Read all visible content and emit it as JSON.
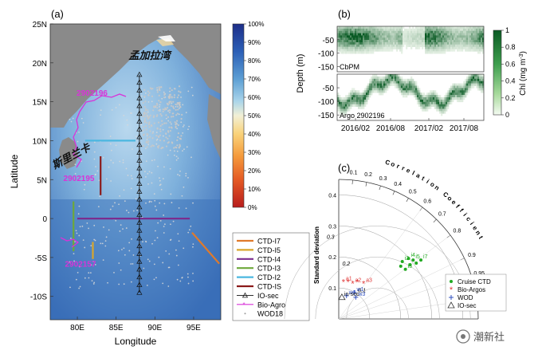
{
  "chart_data": [
    {
      "type": "heatmap",
      "panel_label": "(a)",
      "xlabel": "Longitude",
      "ylabel": "Latitude",
      "xlim": [
        76.5,
        98.5
      ],
      "ylim": [
        -13,
        25
      ],
      "xticks": [
        80,
        85,
        90,
        95
      ],
      "xtick_labels": [
        "80E",
        "85E",
        "90E",
        "95E"
      ],
      "yticks": [
        25,
        20,
        15,
        10,
        5,
        0,
        -5,
        -10
      ],
      "ytick_labels": [
        "25N",
        "20N",
        "15N",
        "10N",
        "5N",
        "0",
        "-5S",
        "-10S"
      ],
      "colorbar": {
        "ticks": [
          100,
          90,
          80,
          70,
          60,
          50,
          40,
          30,
          20,
          10,
          0
        ],
        "tick_labels": [
          "100%",
          "90%",
          "80%",
          "70%",
          "60%",
          "50%",
          "40%",
          "30%",
          "20%",
          "10%",
          "0%"
        ]
      },
      "map_labels": [
        {
          "text": "孟加拉湾",
          "lon": 89.3,
          "lat": 20.5
        },
        {
          "text": "斯里兰卡",
          "lon": 79.4,
          "lat": 7.6
        },
        {
          "text": "2902196",
          "lon": 81.9,
          "lat": 15.8
        },
        {
          "text": "2902195",
          "lon": 80.2,
          "lat": 4.8
        },
        {
          "text": "2902157",
          "lon": 80.4,
          "lat": -6.2
        }
      ],
      "sections": [
        {
          "name": "CTD-I7",
          "color": "#e07a2b",
          "path": [
            [
              94.8,
              -1.8
            ],
            [
              98.3,
              -5.8
            ]
          ]
        },
        {
          "name": "CTD-I5",
          "color": "#d9a62b",
          "path": [
            [
              82.0,
              -3.0
            ],
            [
              82.0,
              -5.2
            ]
          ]
        },
        {
          "name": "CTD-I4",
          "color": "#7b2d8e",
          "path": [
            [
              80.0,
              0
            ],
            [
              94.5,
              0
            ]
          ]
        },
        {
          "name": "CTD-I3",
          "color": "#6da83a",
          "path": [
            [
              79.5,
              2.2
            ],
            [
              79.5,
              -4.2
            ]
          ]
        },
        {
          "name": "CTD-I2",
          "color": "#4bb7e0",
          "path": [
            [
              81.0,
              10
            ],
            [
              87.5,
              10
            ]
          ]
        },
        {
          "name": "CTD-IS",
          "color": "#8b1a1a",
          "path": [
            [
              83.0,
              8.0
            ],
            [
              83.0,
              3.0
            ]
          ]
        }
      ],
      "io_sec": {
        "lon": 88.0,
        "lat_range": [
          -9.5,
          18.5
        ],
        "step": 1.0
      },
      "legend": {
        "placement": "bottom-right",
        "entries": [
          "CTD-I7",
          "CTD-I5",
          "CTD-I4",
          "CTD-I3",
          "CTD-I2",
          "CTD-IS",
          "IO-sec",
          "Bio-Agro",
          "WOD18"
        ]
      }
    },
    {
      "type": "heatmap",
      "panel_label": "(b)",
      "ylabel": "Depth (m)",
      "yticks": [
        -50,
        -100,
        -150
      ],
      "xtick_labels": [
        "2016/02",
        "2016/08",
        "2017/02",
        "2017/08"
      ],
      "subpanels": [
        "CbPM",
        "Argo 2902196"
      ],
      "colorbar": {
        "label": "Chl (mg m",
        "label_exp": "-3",
        "label_close": ")",
        "ticks": [
          "1",
          "0.8",
          "0.6",
          "0.4",
          "0.2",
          "0"
        ]
      }
    },
    {
      "type": "scatter",
      "panel_label": "(c)",
      "subtype": "taylor-diagram",
      "ylabel": "Standard deviation",
      "arc_title": "Correlation Coefficient",
      "std_ticks": [
        "0.1",
        "0.2",
        "0.3",
        "0.4"
      ],
      "inner_arc_labels": [
        "0.1",
        "0.2",
        "0.3"
      ],
      "correlation_ticks": [
        "0.1",
        "0.2",
        "0.3",
        "0.4",
        "0.5",
        "0.6",
        "0.7",
        "0.8",
        "0.9",
        "0.95",
        "0.99"
      ],
      "series": [
        {
          "name": "Cruise CTD",
          "color": "#22aa22",
          "marker": "dot",
          "points": [
            {
              "label": "i2",
              "x": 0.205,
              "y": 0.185
            },
            {
              "label": "i4",
              "x": 0.225,
              "y": 0.195
            },
            {
              "label": "i5",
              "x": 0.24,
              "y": 0.19
            },
            {
              "label": "i7",
              "x": 0.265,
              "y": 0.19
            },
            {
              "label": "i3",
              "x": 0.215,
              "y": 0.16
            },
            {
              "label": "",
              "x": 0.23,
              "y": 0.175
            },
            {
              "label": "",
              "x": 0.25,
              "y": 0.18
            },
            {
              "label": "",
              "x": 0.2,
              "y": 0.17
            }
          ]
        },
        {
          "name": "Bio-Argos",
          "color": "#e03a3a",
          "marker": "star",
          "points": [
            {
              "label": "a1",
              "x": 0.015,
              "y": 0.12
            },
            {
              "label": "a2",
              "x": 0.045,
              "y": 0.115
            },
            {
              "label": "a3",
              "x": 0.08,
              "y": 0.115
            },
            {
              "label": "",
              "x": 0.03,
              "y": 0.12
            },
            {
              "label": "",
              "x": 0.06,
              "y": 0.12
            }
          ]
        },
        {
          "name": "WOD",
          "color": "#3050c0",
          "marker": "plus",
          "points": [
            {
              "label": "w1",
              "x": 0.05,
              "y": 0.085
            },
            {
              "label": "w2",
              "x": 0.025,
              "y": 0.075
            },
            {
              "label": "w3",
              "x": 0.055,
              "y": 0.07
            }
          ]
        },
        {
          "name": "IO-sec",
          "color": "#333333",
          "marker": "triangle",
          "points": [
            {
              "label": "io-sec",
              "x": 0.01,
              "y": 0.07
            }
          ]
        }
      ],
      "legend": {
        "placement": "bottom-right",
        "entries": [
          "Cruise CTD",
          "Bio-Argos",
          "WOD",
          "IO-sec"
        ]
      }
    }
  ],
  "watermark": "潮新社"
}
